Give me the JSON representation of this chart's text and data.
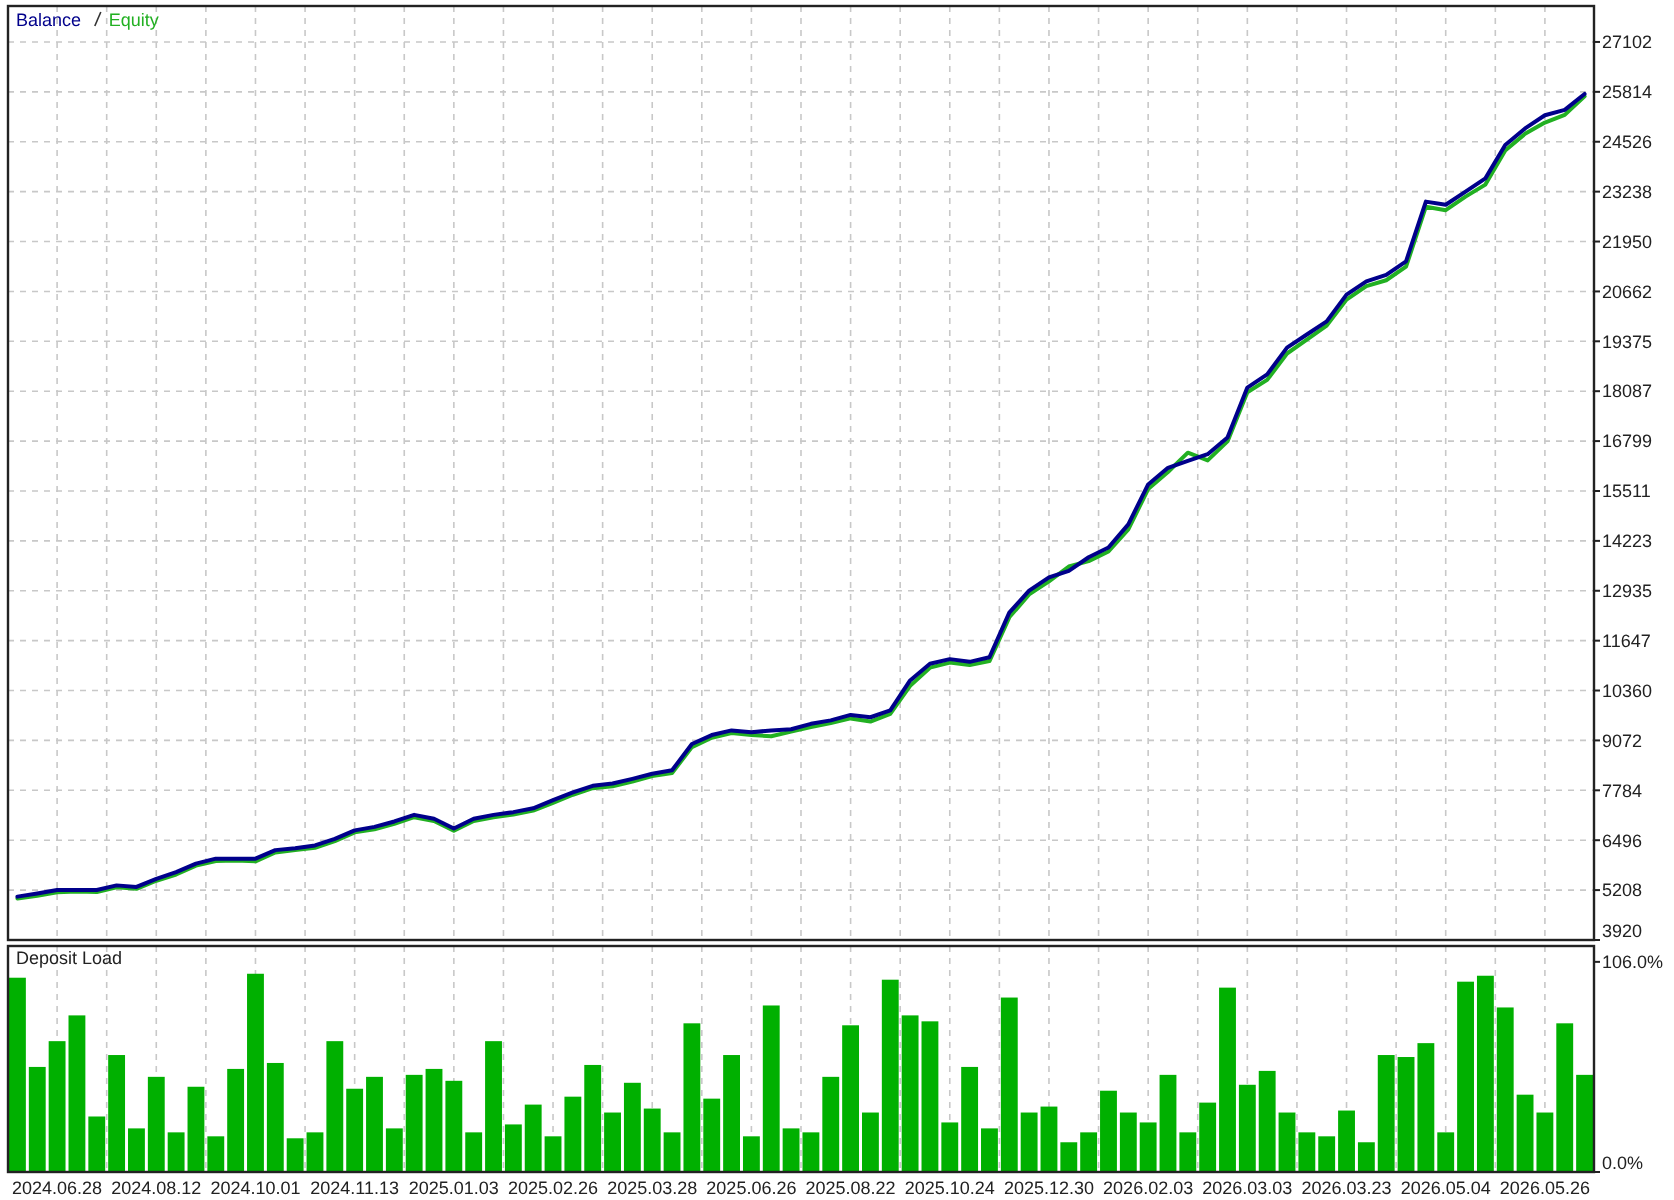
{
  "chart_data": [
    {
      "type": "line",
      "legend": "top left",
      "grid": true,
      "tick_labels": "y",
      "categories": [
        null,
        null,
        "2024.06.28",
        null,
        null,
        null,
        null,
        "2024.08.12",
        null,
        null,
        null,
        null,
        "2024.10.01",
        null,
        null,
        null,
        null,
        "2024.11.13",
        null,
        null,
        null,
        null,
        "2025.01.03",
        null,
        null,
        null,
        null,
        "2025.02.26",
        null,
        null,
        null,
        null,
        "2025.03.28",
        null,
        null,
        null,
        null,
        "2025.06.26",
        null,
        null,
        null,
        null,
        "2025.08.22",
        null,
        null,
        null,
        null,
        "2025.10.24",
        null,
        null,
        null,
        null,
        "2025.12.30",
        null,
        null,
        null,
        null,
        "2026.02.03",
        null,
        null,
        null,
        null,
        "2026.03.03",
        null,
        null,
        null,
        null,
        "2026.03.23",
        null,
        null,
        null,
        null,
        "2026.05.04",
        null,
        null,
        null,
        null,
        "2026.05.26",
        null,
        null
      ],
      "ylim": [
        3920,
        28030
      ],
      "yticks": [
        3920,
        5208,
        6496,
        7784,
        9072,
        10360,
        11647,
        12935,
        14223,
        15511,
        16799,
        18087,
        19375,
        20662,
        21950,
        23238,
        24526,
        25814,
        27102
      ],
      "series": [
        {
          "name": "Equity",
          "color": "#22b022",
          "values": [
            4990,
            5060,
            5150,
            5170,
            5160,
            5280,
            5240,
            5450,
            5610,
            5840,
            5960,
            5970,
            5950,
            6180,
            6240,
            6300,
            6470,
            6700,
            6780,
            6920,
            7090,
            6990,
            6740,
            6990,
            7090,
            7160,
            7260,
            7460,
            7670,
            7840,
            7890,
            8010,
            8150,
            8230,
            8900,
            9140,
            9260,
            9210,
            9180,
            9300,
            9420,
            9520,
            9640,
            9560,
            9760,
            10480,
            10950,
            11080,
            11020,
            11120,
            12250,
            12840,
            13180,
            13560,
            13700,
            13950,
            14520,
            15560,
            16000,
            16500,
            16300,
            16790,
            18060,
            18380,
            19060,
            19420,
            19780,
            20450,
            20800,
            20950,
            21300,
            22850,
            22760,
            23110,
            23420,
            24300,
            24730,
            25020,
            25220,
            25700
          ]
        },
        {
          "name": "Balance",
          "color": "#00008b",
          "values": [
            5040,
            5120,
            5210,
            5210,
            5210,
            5330,
            5290,
            5500,
            5670,
            5890,
            6020,
            6020,
            6020,
            6240,
            6290,
            6360,
            6530,
            6750,
            6840,
            6980,
            7150,
            7050,
            6800,
            7050,
            7150,
            7220,
            7320,
            7530,
            7730,
            7900,
            7960,
            8080,
            8210,
            8300,
            8980,
            9210,
            9330,
            9280,
            9330,
            9360,
            9500,
            9590,
            9730,
            9670,
            9850,
            10620,
            11050,
            11170,
            11100,
            11220,
            12370,
            12940,
            13280,
            13450,
            13800,
            14050,
            14650,
            15680,
            16110,
            16290,
            16460,
            16890,
            18180,
            18520,
            19210,
            19550,
            19890,
            20580,
            20920,
            21090,
            21440,
            22980,
            22900,
            23240,
            23580,
            24440,
            24870,
            25210,
            25350,
            25760
          ]
        }
      ]
    },
    {
      "type": "bar",
      "title": "Deposit Load",
      "grid": "x",
      "color": "#00b000",
      "categories": [
        null,
        null,
        "2024.06.28",
        null,
        null,
        null,
        null,
        "2024.08.12",
        null,
        null,
        null,
        null,
        "2024.10.01",
        null,
        null,
        null,
        null,
        "2024.11.13",
        null,
        null,
        null,
        null,
        "2025.01.03",
        null,
        null,
        null,
        null,
        "2025.02.26",
        null,
        null,
        null,
        null,
        "2025.03.28",
        null,
        null,
        null,
        null,
        "2025.06.26",
        null,
        null,
        null,
        null,
        "2025.08.22",
        null,
        null,
        null,
        null,
        "2025.10.24",
        null,
        null,
        null,
        null,
        "2025.12.30",
        null,
        null,
        null,
        null,
        "2026.02.03",
        null,
        null,
        null,
        null,
        "2026.03.03",
        null,
        null,
        null,
        null,
        "2026.03.23",
        null,
        null,
        null,
        null,
        "2026.05.04",
        null,
        null,
        null,
        null,
        "2026.05.26",
        null,
        null
      ],
      "ylim": [
        0,
        114
      ],
      "yticks": [
        {
          "value": 0,
          "label": "0.0%"
        },
        {
          "value": 106,
          "label": "106.0%"
        }
      ],
      "values": [
        98,
        53,
        66,
        79,
        28,
        59,
        22,
        48,
        20,
        43,
        18,
        52,
        100,
        55,
        17,
        20,
        66,
        42,
        48,
        22,
        49,
        52,
        46,
        20,
        66,
        24,
        34,
        18,
        38,
        54,
        30,
        45,
        32,
        20,
        75,
        37,
        59,
        18,
        84,
        22,
        20,
        48,
        74,
        30,
        97,
        79,
        76,
        25,
        53,
        22,
        88,
        30,
        33,
        15,
        20,
        41,
        30,
        25,
        49,
        20,
        35,
        93,
        44,
        51,
        30,
        20,
        18,
        31,
        15,
        59,
        58,
        65,
        20,
        96,
        99,
        83,
        39,
        30,
        75,
        49
      ]
    }
  ]
}
